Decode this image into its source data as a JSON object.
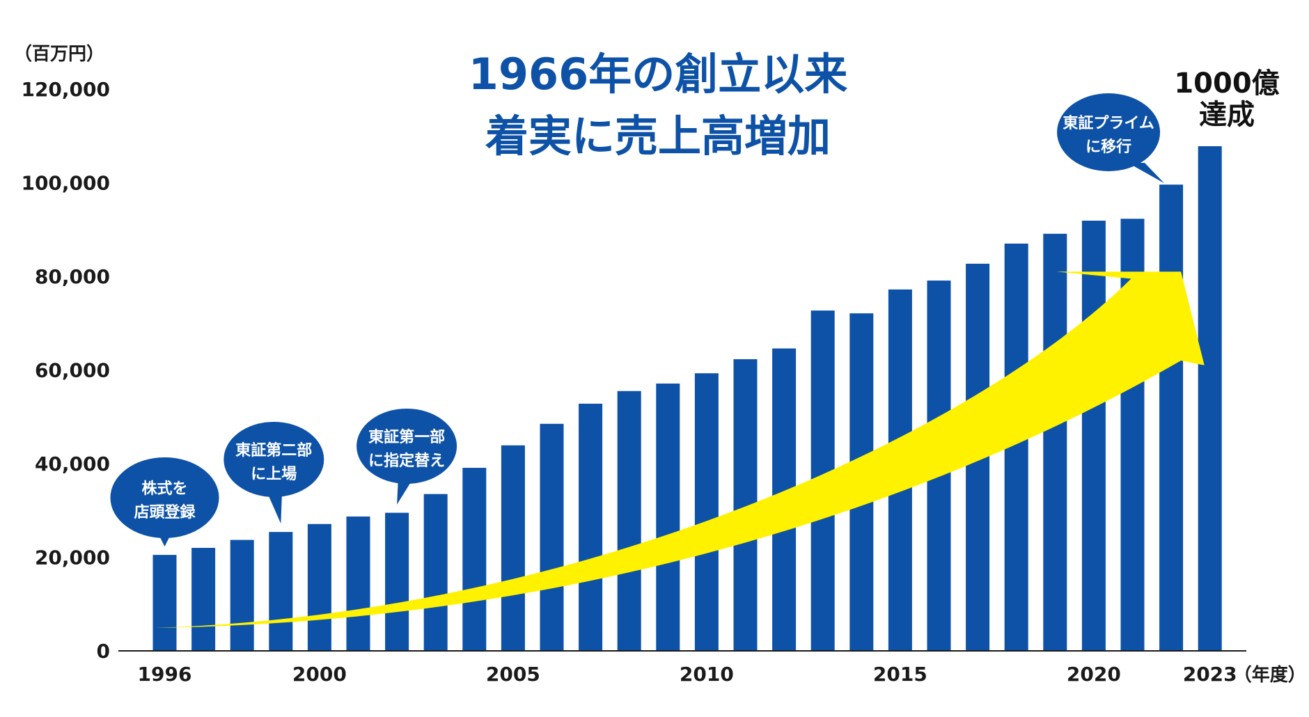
{
  "title_line1": "1966年の創立以来",
  "title_line2": "着実に売上高増加",
  "y_unit": "（百万円）",
  "x_unit": "（年度）",
  "milestone_line1": "1000億",
  "milestone_line2": "達成",
  "colors": {
    "bar": "#0d52a7",
    "arrow": "#fff200",
    "bubble": "#0d52a7",
    "title": "#0d52a7"
  },
  "annotations": [
    {
      "year": 1996,
      "lines": [
        "株式を",
        "店頭登録"
      ]
    },
    {
      "year": 1999,
      "lines": [
        "東証第二部",
        "に上場"
      ]
    },
    {
      "year": 2002,
      "lines": [
        "東証第一部",
        "に指定替え"
      ]
    },
    {
      "year": 2022,
      "lines": [
        "東証プライム",
        "に移行"
      ]
    }
  ],
  "chart_data": {
    "type": "bar",
    "categories": [
      "1996",
      "1997",
      "1998",
      "1999",
      "2000",
      "2001",
      "2002",
      "2003",
      "2004",
      "2005",
      "2006",
      "2007",
      "2008",
      "2009",
      "2010",
      "2011",
      "2012",
      "2013",
      "2014",
      "2015",
      "2016",
      "2017",
      "2018",
      "2019",
      "2020",
      "2021",
      "2022",
      "2023"
    ],
    "x_tick_labels": [
      "1996",
      "2000",
      "2005",
      "2010",
      "2015",
      "2020",
      "2023"
    ],
    "values": [
      20500,
      22000,
      23700,
      25400,
      27100,
      28700,
      29500,
      33500,
      39100,
      43900,
      48500,
      52800,
      55500,
      57100,
      59300,
      62300,
      64600,
      72700,
      72100,
      77200,
      79100,
      82700,
      87000,
      89100,
      91900,
      92300,
      99600,
      107800
    ],
    "y_ticks": [
      "0",
      "20,000",
      "40,000",
      "60,000",
      "80,000",
      "100,000",
      "120,000"
    ],
    "ylim": [
      0,
      120000
    ],
    "grid": false
  }
}
